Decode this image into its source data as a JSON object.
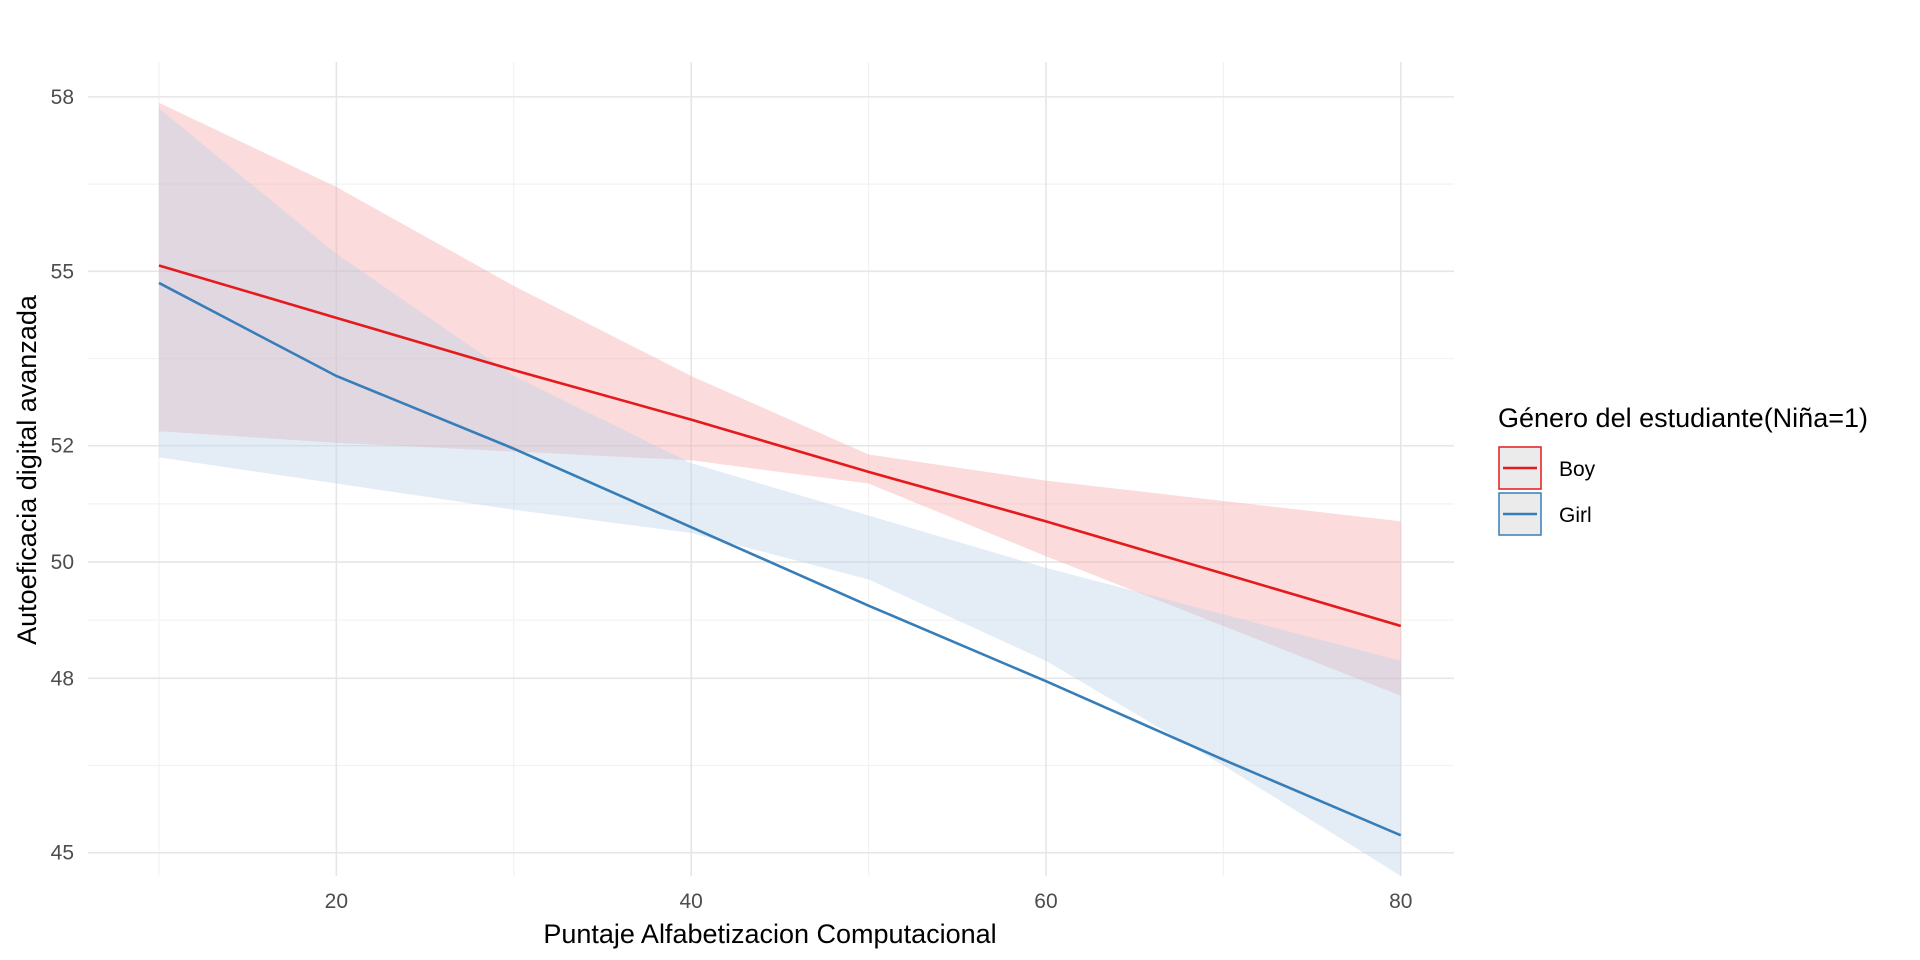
{
  "chart_data": {
    "type": "line",
    "title": "",
    "xlabel": "Puntaje Alfabetizacion Computacional",
    "ylabel": "Autoeficacia digital avanzada",
    "xlim": [
      6,
      83
    ],
    "ylim": [
      44.6,
      58.6
    ],
    "x_ticks": [
      20,
      40,
      60,
      80
    ],
    "y_ticks": [
      45,
      48,
      50,
      52,
      55,
      58
    ],
    "y_tick_labels": [
      "45",
      "48",
      "50",
      "52",
      "55",
      "58"
    ],
    "grid": true,
    "legend": {
      "title": "Género del estudiante(Niña=1)",
      "position": "right"
    },
    "x": [
      10,
      20,
      30,
      40,
      50,
      60,
      70,
      80
    ],
    "series": [
      {
        "name": "Boy",
        "color": "#e41a1c",
        "band_color": "#f4a6a8",
        "values": [
          55.1,
          54.2,
          53.3,
          52.45,
          51.55,
          50.7,
          49.8,
          48.9
        ],
        "lower": [
          52.25,
          52.05,
          51.9,
          51.75,
          51.35,
          50.1,
          48.9,
          47.7
        ],
        "upper": [
          57.9,
          56.45,
          54.75,
          53.2,
          51.85,
          51.4,
          51.05,
          50.7
        ]
      },
      {
        "name": "Girl",
        "color": "#377eb8",
        "band_color": "#bcd3e9",
        "values": [
          54.8,
          53.2,
          51.95,
          50.6,
          49.25,
          47.95,
          46.6,
          45.3
        ],
        "lower": [
          51.8,
          51.35,
          50.9,
          50.5,
          49.7,
          48.3,
          46.5,
          44.6
        ],
        "upper": [
          57.8,
          55.3,
          53.2,
          51.7,
          50.8,
          49.9,
          49.1,
          48.3
        ]
      }
    ]
  }
}
